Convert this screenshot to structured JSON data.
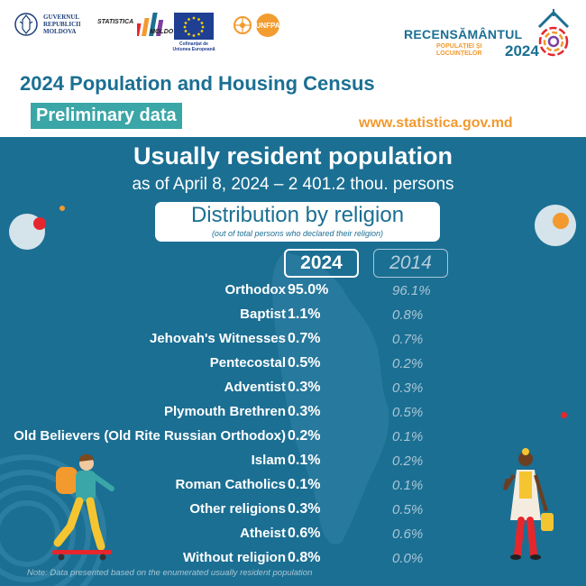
{
  "header": {
    "gov_logo_text": [
      "GUVERNUL",
      "REPUBLICII",
      "MOLDOVA"
    ],
    "stat_logo_text": [
      "STATISTICA",
      "MOLDOVEI"
    ],
    "eu_caption": [
      "Cofinanțat de",
      "Uniunea Europeană"
    ],
    "unfpa_label": "UNFPA",
    "census_logo": {
      "word": "RECENSĂMÂNTUL",
      "sub_line1": "POPULAȚIEI ȘI",
      "sub_line2": "LOCUINȚELOR",
      "year": "2024"
    },
    "title": "2024 Population and Housing Census",
    "badge": "Preliminary data",
    "website": "www.statistica.gov.md"
  },
  "panel": {
    "heading": "Usually resident population",
    "subheading": "as of April 8, 2024 – 2 401.2 thou. persons",
    "dist_title": "Distribution by religion",
    "dist_note": "(out of total persons who declared their religion)",
    "col_2024": "2024",
    "col_2014": "2014",
    "footnote": "Note: Data presented based on the enumerated usually resident population"
  },
  "rows": [
    {
      "label": "Orthodox",
      "v2024": "95.0%",
      "v2014": "96.1%"
    },
    {
      "label": "Baptist",
      "v2024": "1.1%",
      "v2014": "0.8%"
    },
    {
      "label": "Jehovah's Witnesses",
      "v2024": "0.7%",
      "v2014": "0.7%"
    },
    {
      "label": "Pentecostal",
      "v2024": "0.5%",
      "v2014": "0.2%"
    },
    {
      "label": "Adventist",
      "v2024": "0.3%",
      "v2014": "0.3%"
    },
    {
      "label": "Plymouth Brethren",
      "v2024": "0.3%",
      "v2014": "0.5%"
    },
    {
      "label": "Old Believers (Old Rite Russian Orthodox)",
      "v2024": "0.2%",
      "v2014": "0.1%"
    },
    {
      "label": "Islam",
      "v2024": "0.1%",
      "v2014": "0.2%"
    },
    {
      "label": "Roman Catholics",
      "v2024": "0.1%",
      "v2014": "0.1%"
    },
    {
      "label": "Other religions",
      "v2024": "0.3%",
      "v2014": "0.5%"
    },
    {
      "label": "Atheist",
      "v2024": "0.6%",
      "v2014": "0.6%"
    },
    {
      "label": "Without religion",
      "v2024": "0.8%",
      "v2014": "0.0%"
    }
  ],
  "colors": {
    "primary_blue": "#1b6f93",
    "teal_badge": "#3aa6a7",
    "accent_orange": "#f29a2e",
    "accent_red": "#e5272d"
  }
}
